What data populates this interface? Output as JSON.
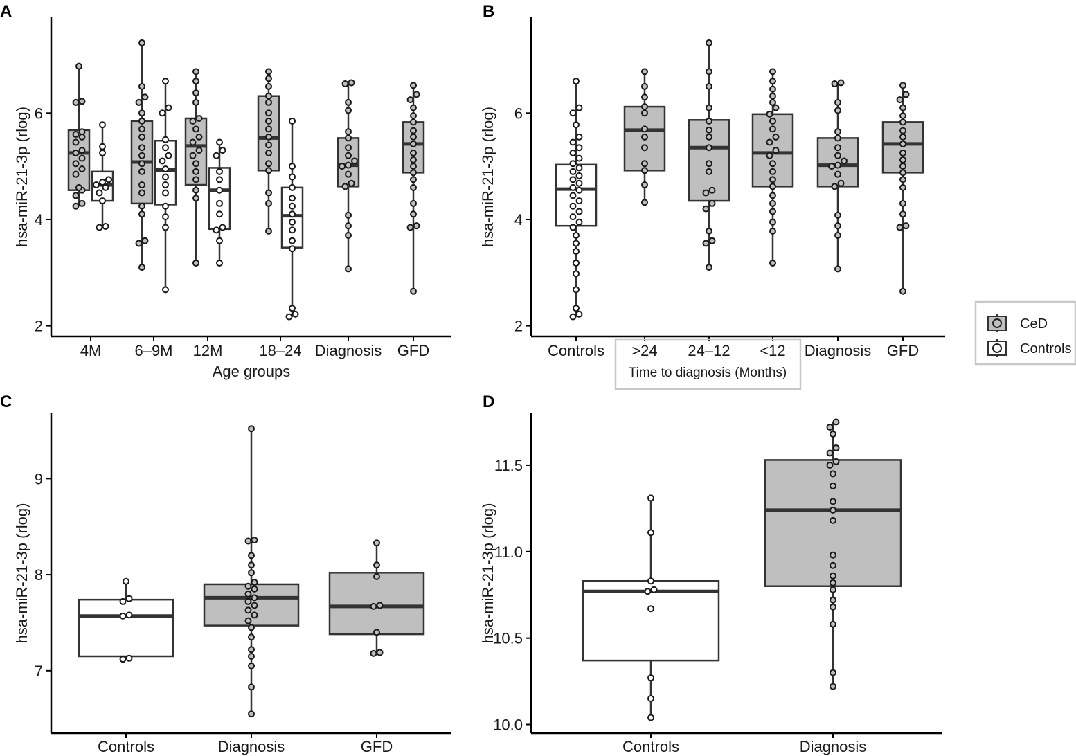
{
  "colors": {
    "ced": "#bfbfbf",
    "controls": "#ffffff",
    "line": "#333333",
    "axis": "#000000"
  },
  "legend": {
    "items": [
      {
        "label": "CeD",
        "fill": "#bfbfbf"
      },
      {
        "label": "Controls",
        "fill": "#ffffff"
      }
    ]
  },
  "chart_data": [
    {
      "panel": "A",
      "type": "box",
      "xlabel": "Age groups",
      "ylabel": "hsa-miR-21-3p (rlog)",
      "ylim": [
        1.8,
        7.8
      ],
      "yticks": [
        2,
        4,
        6
      ],
      "categories": [
        "4M",
        "6–9M",
        "12M",
        "18–24",
        "Diagnosis",
        "GFD"
      ],
      "boxes": [
        {
          "cat": 0,
          "offset": -1,
          "group": "CeD",
          "min": 4.25,
          "q1": 4.55,
          "median": 5.25,
          "q3": 5.68,
          "max": 6.88,
          "points": [
            4.25,
            4.3,
            4.45,
            4.55,
            4.6,
            4.85,
            4.95,
            5.05,
            5.15,
            5.25,
            5.3,
            5.45,
            5.55,
            5.6,
            5.65,
            6.2,
            6.22,
            6.88
          ]
        },
        {
          "cat": 0,
          "offset": 1,
          "group": "Controls",
          "min": 3.85,
          "q1": 4.35,
          "median": 4.65,
          "q3": 4.9,
          "max": 5.78,
          "points": [
            3.85,
            3.87,
            4.35,
            4.5,
            4.6,
            4.65,
            4.7,
            4.75,
            5.25,
            5.37,
            5.78
          ]
        },
        {
          "cat": 1,
          "offset": -1,
          "group": "CeD",
          "min": 3.1,
          "q1": 4.3,
          "median": 5.08,
          "q3": 5.85,
          "max": 7.32,
          "points": [
            3.1,
            3.55,
            3.6,
            4.1,
            4.25,
            4.5,
            4.65,
            4.9,
            5.05,
            5.2,
            5.35,
            5.55,
            5.7,
            5.85,
            6.0,
            6.2,
            6.3,
            6.5,
            7.32
          ]
        },
        {
          "cat": 1,
          "offset": 1,
          "group": "Controls",
          "min": 2.68,
          "q1": 4.28,
          "median": 4.93,
          "q3": 5.48,
          "max": 6.6,
          "points": [
            2.68,
            3.85,
            4.05,
            4.25,
            4.5,
            4.65,
            4.8,
            4.95,
            5.1,
            5.2,
            5.35,
            5.5,
            6.0,
            6.1,
            6.6
          ]
        },
        {
          "cat": 2,
          "offset": -1,
          "group": "CeD",
          "min": 3.18,
          "q1": 4.65,
          "median": 5.38,
          "q3": 5.9,
          "max": 6.78,
          "points": [
            3.18,
            4.4,
            4.55,
            4.75,
            4.9,
            5.05,
            5.2,
            5.3,
            5.45,
            5.55,
            5.7,
            5.85,
            5.9,
            6.2,
            6.38,
            6.6,
            6.78
          ]
        },
        {
          "cat": 2,
          "offset": 1,
          "group": "Controls",
          "min": 3.18,
          "q1": 3.82,
          "median": 4.55,
          "q3": 4.97,
          "max": 5.45,
          "points": [
            3.18,
            3.6,
            3.8,
            3.85,
            4.1,
            4.3,
            4.55,
            4.75,
            4.9,
            5.2,
            5.3,
            5.45
          ]
        },
        {
          "cat": 3,
          "offset": -1,
          "group": "CeD",
          "min": 3.78,
          "q1": 4.92,
          "median": 5.53,
          "q3": 6.32,
          "max": 6.78,
          "points": [
            3.78,
            4.3,
            4.5,
            4.92,
            5.05,
            5.25,
            5.4,
            5.55,
            5.7,
            5.85,
            6.0,
            6.2,
            6.32,
            6.5,
            6.65,
            6.78
          ]
        },
        {
          "cat": 3,
          "offset": 1,
          "group": "Controls",
          "min": 2.17,
          "q1": 3.47,
          "median": 4.07,
          "q3": 4.6,
          "max": 5.85,
          "points": [
            2.17,
            2.22,
            2.33,
            3.45,
            3.6,
            3.8,
            3.95,
            4.1,
            4.25,
            4.4,
            4.6,
            4.8,
            5.0,
            5.85
          ]
        },
        {
          "cat": 4,
          "offset": 0,
          "group": "CeD",
          "min": 3.07,
          "q1": 4.62,
          "median": 5.02,
          "q3": 5.53,
          "max": 6.57,
          "points": [
            3.07,
            3.7,
            3.88,
            4.08,
            4.62,
            4.68,
            4.85,
            5.0,
            5.02,
            5.1,
            5.2,
            5.35,
            5.53,
            5.65,
            6.05,
            6.2,
            6.55,
            6.57
          ]
        },
        {
          "cat": 5,
          "offset": 0,
          "group": "CeD",
          "min": 2.65,
          "q1": 4.88,
          "median": 5.42,
          "q3": 5.83,
          "max": 6.52,
          "points": [
            2.65,
            3.85,
            3.88,
            4.1,
            4.3,
            4.6,
            4.75,
            4.88,
            5.0,
            5.12,
            5.25,
            5.42,
            5.55,
            5.67,
            5.83,
            5.95,
            6.1,
            6.25,
            6.35,
            6.52
          ]
        }
      ]
    },
    {
      "panel": "B",
      "type": "box",
      "xlabel": "",
      "ylabel": "hsa-miR-21-3p (rlog)",
      "ylim": [
        1.8,
        7.8
      ],
      "yticks": [
        2,
        4,
        6
      ],
      "categories": [
        "Controls",
        ">24",
        "24–12",
        "<12",
        "Diagnosis",
        "GFD"
      ],
      "subtitle": "Time to diagnosis (Months)",
      "boxes": [
        {
          "cat": 0,
          "offset": 0,
          "group": "Controls",
          "min": 2.17,
          "q1": 3.88,
          "median": 4.57,
          "q3": 5.03,
          "max": 6.6,
          "points": [
            2.17,
            2.22,
            2.33,
            2.68,
            2.98,
            3.18,
            3.4,
            3.55,
            3.7,
            3.85,
            3.95,
            4.05,
            4.15,
            4.25,
            4.35,
            4.45,
            4.55,
            4.6,
            4.68,
            4.75,
            4.82,
            4.9,
            4.97,
            5.05,
            5.15,
            5.25,
            5.35,
            5.45,
            5.55,
            5.78,
            6.0,
            6.1,
            6.6
          ]
        },
        {
          "cat": 1,
          "offset": 0,
          "group": "CeD",
          "min": 4.32,
          "q1": 4.92,
          "median": 5.68,
          "q3": 6.12,
          "max": 6.78,
          "points": [
            4.32,
            4.65,
            4.92,
            5.05,
            5.35,
            5.55,
            5.7,
            6.0,
            6.12,
            6.3,
            6.5,
            6.78
          ]
        },
        {
          "cat": 2,
          "offset": 0,
          "group": "CeD",
          "min": 3.1,
          "q1": 4.35,
          "median": 5.35,
          "q3": 5.87,
          "max": 7.32,
          "points": [
            3.1,
            3.55,
            3.6,
            3.78,
            4.2,
            4.3,
            4.5,
            4.55,
            4.9,
            5.05,
            5.35,
            5.55,
            5.68,
            5.85,
            6.1,
            6.5,
            6.78,
            7.32
          ]
        },
        {
          "cat": 3,
          "offset": 0,
          "group": "CeD",
          "min": 3.18,
          "q1": 4.62,
          "median": 5.25,
          "q3": 5.98,
          "max": 6.78,
          "points": [
            3.18,
            3.78,
            3.95,
            4.15,
            4.3,
            4.45,
            4.62,
            4.75,
            4.9,
            5.05,
            5.2,
            5.3,
            5.45,
            5.55,
            5.7,
            5.85,
            5.98,
            6.1,
            6.2,
            6.32,
            6.45,
            6.6,
            6.78
          ]
        },
        {
          "cat": 4,
          "offset": 0,
          "group": "CeD",
          "min": 3.07,
          "q1": 4.62,
          "median": 5.02,
          "q3": 5.53,
          "max": 6.57,
          "points": [
            3.07,
            3.7,
            3.88,
            4.08,
            4.62,
            4.68,
            4.85,
            5.0,
            5.02,
            5.1,
            5.2,
            5.35,
            5.53,
            5.65,
            6.05,
            6.2,
            6.55,
            6.57
          ]
        },
        {
          "cat": 5,
          "offset": 0,
          "group": "CeD",
          "min": 2.65,
          "q1": 4.88,
          "median": 5.42,
          "q3": 5.83,
          "max": 6.52,
          "points": [
            2.65,
            3.85,
            3.88,
            4.1,
            4.3,
            4.6,
            4.75,
            4.88,
            5.0,
            5.12,
            5.25,
            5.42,
            5.55,
            5.67,
            5.83,
            5.95,
            6.1,
            6.25,
            6.35,
            6.52
          ]
        }
      ]
    },
    {
      "panel": "C",
      "type": "box",
      "xlabel": "",
      "ylabel": "hsa-miR-21-3p (rlog)",
      "ylim": [
        6.35,
        9.68
      ],
      "yticks": [
        7,
        8,
        9
      ],
      "categories": [
        "Controls",
        "Diagnosis",
        "GFD"
      ],
      "boxes": [
        {
          "cat": 0,
          "offset": 0,
          "group": "Controls",
          "min": 7.12,
          "q1": 7.15,
          "median": 7.57,
          "q3": 7.74,
          "max": 7.93,
          "points": [
            7.12,
            7.13,
            7.57,
            7.58,
            7.72,
            7.75,
            7.93
          ]
        },
        {
          "cat": 1,
          "offset": 0,
          "group": "CeD",
          "min": 6.55,
          "q1": 7.47,
          "median": 7.76,
          "q3": 7.9,
          "max": 9.52,
          "points": [
            6.55,
            6.83,
            7.05,
            7.15,
            7.22,
            7.35,
            7.45,
            7.52,
            7.58,
            7.63,
            7.68,
            7.72,
            7.76,
            7.8,
            7.85,
            7.88,
            7.92,
            8.02,
            8.1,
            8.2,
            8.35,
            8.36,
            9.52
          ]
        },
        {
          "cat": 2,
          "offset": 0,
          "group": "CeD",
          "min": 7.18,
          "q1": 7.38,
          "median": 7.67,
          "q3": 8.02,
          "max": 8.33,
          "points": [
            7.18,
            7.19,
            7.4,
            7.67,
            7.68,
            7.98,
            8.1,
            8.33
          ]
        }
      ]
    },
    {
      "panel": "D",
      "type": "box",
      "xlabel": "",
      "ylabel": "hsa-miR-21-3p (rlog)",
      "ylim": [
        9.95,
        11.8
      ],
      "yticks": [
        10.0,
        10.5,
        11.0,
        11.5
      ],
      "categories": [
        "Controls",
        "Diagnosis"
      ],
      "boxes": [
        {
          "cat": 0,
          "offset": 0,
          "group": "Controls",
          "min": 10.04,
          "q1": 10.37,
          "median": 10.77,
          "q3": 10.83,
          "max": 11.31,
          "points": [
            10.04,
            10.15,
            10.27,
            10.67,
            10.77,
            10.78,
            10.83,
            11.11,
            11.31
          ]
        },
        {
          "cat": 1,
          "offset": 0,
          "group": "CeD",
          "min": 10.22,
          "q1": 10.8,
          "median": 11.24,
          "q3": 11.53,
          "max": 11.75,
          "points": [
            10.22,
            10.3,
            10.58,
            10.68,
            10.72,
            10.78,
            10.82,
            10.86,
            10.92,
            10.98,
            11.18,
            11.24,
            11.29,
            11.38,
            11.45,
            11.5,
            11.52,
            11.57,
            11.6,
            11.68,
            11.72,
            11.75
          ]
        }
      ]
    }
  ]
}
